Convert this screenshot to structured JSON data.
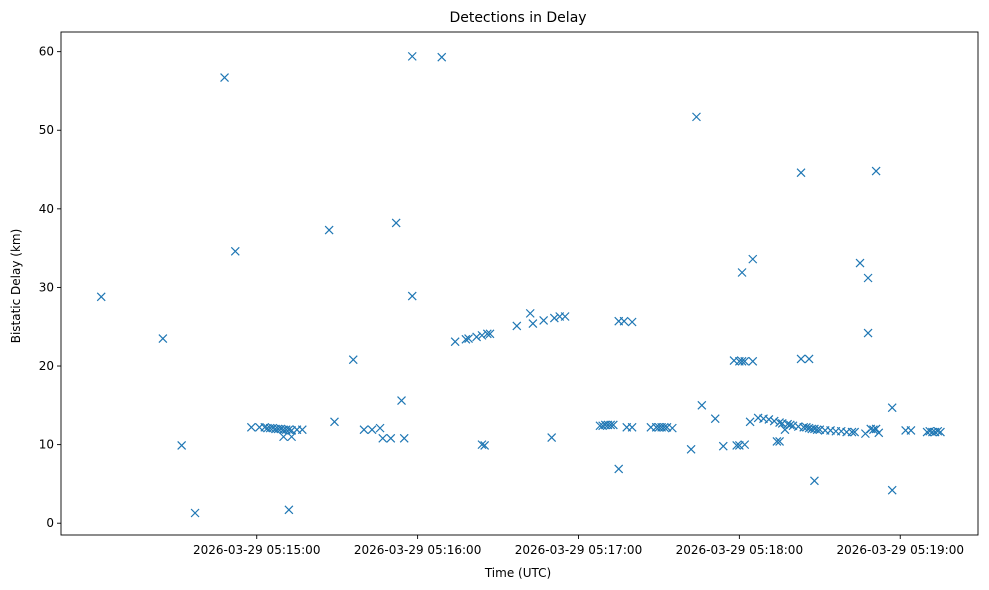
{
  "chart_data": {
    "type": "scatter",
    "title": "Detections in Delay",
    "xlabel": "Time (UTC)",
    "ylabel": "Bistatic Delay (km)",
    "x_unit": "seconds past 2026-03-29 05:14:00",
    "xlim": [
      -13,
      329
    ],
    "ylim": [
      -1.5,
      62.5
    ],
    "x_ticks": [
      {
        "value": 60,
        "label": "2026-03-29 05:15:00"
      },
      {
        "value": 120,
        "label": "2026-03-29 05:16:00"
      },
      {
        "value": 180,
        "label": "2026-03-29 05:17:00"
      },
      {
        "value": 240,
        "label": "2026-03-29 05:18:00"
      },
      {
        "value": 300,
        "label": "2026-03-29 05:19:00"
      }
    ],
    "y_ticks": [
      0,
      10,
      20,
      30,
      40,
      50,
      60
    ],
    "grid": false,
    "marker": "x",
    "color": "#1f77b4",
    "points": [
      [
        2,
        28.8
      ],
      [
        25,
        23.5
      ],
      [
        32,
        9.9
      ],
      [
        37,
        1.3
      ],
      [
        48,
        56.7
      ],
      [
        52,
        34.6
      ],
      [
        58,
        12.2
      ],
      [
        61,
        12.2
      ],
      [
        63,
        12.2
      ],
      [
        64,
        12.1
      ],
      [
        65,
        12.1
      ],
      [
        66,
        12.1
      ],
      [
        67,
        12.0
      ],
      [
        68,
        12.0
      ],
      [
        69,
        12.0
      ],
      [
        70,
        11.9
      ],
      [
        71,
        11.9
      ],
      [
        72,
        11.9
      ],
      [
        73,
        11.8
      ],
      [
        75,
        11.9
      ],
      [
        77,
        11.9
      ],
      [
        70,
        11.0
      ],
      [
        72,
        1.7
      ],
      [
        73,
        11.0
      ],
      [
        87,
        37.3
      ],
      [
        89,
        12.9
      ],
      [
        96,
        20.8
      ],
      [
        100,
        11.9
      ],
      [
        103,
        11.9
      ],
      [
        106,
        12.1
      ],
      [
        107,
        10.8
      ],
      [
        110,
        10.8
      ],
      [
        112,
        38.2
      ],
      [
        114,
        15.6
      ],
      [
        115,
        10.8
      ],
      [
        118,
        59.4
      ],
      [
        118,
        28.9
      ],
      [
        129,
        59.3
      ],
      [
        134,
        23.1
      ],
      [
        138,
        23.4
      ],
      [
        139,
        23.5
      ],
      [
        142,
        23.7
      ],
      [
        144,
        23.9
      ],
      [
        146,
        24.1
      ],
      [
        147,
        24.1
      ],
      [
        144,
        10.0
      ],
      [
        145,
        9.9
      ],
      [
        157,
        25.1
      ],
      [
        162,
        26.7
      ],
      [
        163,
        25.4
      ],
      [
        167,
        25.8
      ],
      [
        171,
        26.1
      ],
      [
        173,
        26.3
      ],
      [
        175,
        26.3
      ],
      [
        170,
        10.9
      ],
      [
        188,
        12.4
      ],
      [
        189,
        12.4
      ],
      [
        190,
        12.5
      ],
      [
        191,
        12.5
      ],
      [
        192,
        12.5
      ],
      [
        193,
        12.5
      ],
      [
        195,
        6.9
      ],
      [
        195,
        25.7
      ],
      [
        197,
        25.7
      ],
      [
        200,
        25.6
      ],
      [
        198,
        12.2
      ],
      [
        200,
        12.2
      ],
      [
        207,
        12.2
      ],
      [
        209,
        12.2
      ],
      [
        210,
        12.2
      ],
      [
        211,
        12.2
      ],
      [
        212,
        12.2
      ],
      [
        213,
        12.2
      ],
      [
        215,
        12.1
      ],
      [
        222,
        9.4
      ],
      [
        224,
        51.7
      ],
      [
        226,
        15.0
      ],
      [
        231,
        13.3
      ],
      [
        234,
        9.8
      ],
      [
        238,
        20.7
      ],
      [
        239,
        9.9
      ],
      [
        240,
        20.6
      ],
      [
        240,
        9.9
      ],
      [
        241,
        20.6
      ],
      [
        241,
        31.9
      ],
      [
        242,
        20.6
      ],
      [
        242,
        10.0
      ],
      [
        244,
        12.9
      ],
      [
        245,
        20.6
      ],
      [
        245,
        33.6
      ],
      [
        247,
        13.4
      ],
      [
        249,
        13.3
      ],
      [
        251,
        13.2
      ],
      [
        253,
        13.0
      ],
      [
        254,
        10.4
      ],
      [
        255,
        10.4
      ],
      [
        255,
        12.8
      ],
      [
        256,
        12.7
      ],
      [
        257,
        11.9
      ],
      [
        258,
        12.6
      ],
      [
        259,
        12.5
      ],
      [
        260,
        12.4
      ],
      [
        262,
        12.3
      ],
      [
        263,
        44.6
      ],
      [
        263,
        20.9
      ],
      [
        264,
        12.2
      ],
      [
        265,
        12.2
      ],
      [
        266,
        20.9
      ],
      [
        266,
        12.1
      ],
      [
        267,
        12.0
      ],
      [
        268,
        5.4
      ],
      [
        268,
        12.0
      ],
      [
        269,
        11.9
      ],
      [
        270,
        11.9
      ],
      [
        272,
        11.8
      ],
      [
        274,
        11.8
      ],
      [
        276,
        11.7
      ],
      [
        278,
        11.7
      ],
      [
        280,
        11.6
      ],
      [
        282,
        11.6
      ],
      [
        283,
        11.6
      ],
      [
        285,
        33.1
      ],
      [
        287,
        11.4
      ],
      [
        288,
        24.2
      ],
      [
        288,
        31.2
      ],
      [
        289,
        12.0
      ],
      [
        290,
        11.9
      ],
      [
        291,
        44.8
      ],
      [
        291,
        12.0
      ],
      [
        292,
        11.5
      ],
      [
        297,
        14.7
      ],
      [
        297,
        4.2
      ],
      [
        302,
        11.8
      ],
      [
        304,
        11.8
      ],
      [
        310,
        11.6
      ],
      [
        311,
        11.7
      ],
      [
        312,
        11.6
      ],
      [
        313,
        11.6
      ],
      [
        314,
        11.7
      ],
      [
        315,
        11.6
      ]
    ]
  }
}
